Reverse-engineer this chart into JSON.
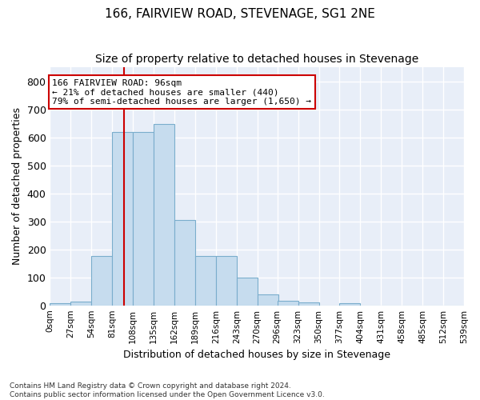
{
  "title": "166, FAIRVIEW ROAD, STEVENAGE, SG1 2NE",
  "subtitle": "Size of property relative to detached houses in Stevenage",
  "xlabel": "Distribution of detached houses by size in Stevenage",
  "ylabel": "Number of detached properties",
  "bar_color": "#c6dcee",
  "bar_edge_color": "#7aadcc",
  "background_color": "#e8eef8",
  "grid_color": "#ffffff",
  "bin_edges": [
    0,
    27,
    54,
    81,
    108,
    135,
    162,
    189,
    216,
    243,
    270,
    296,
    323,
    350,
    377,
    404,
    431,
    458,
    485,
    512,
    539
  ],
  "bar_heights": [
    8,
    13,
    175,
    620,
    620,
    648,
    305,
    175,
    175,
    98,
    40,
    15,
    10,
    0,
    8,
    0,
    0,
    0,
    0,
    0
  ],
  "property_size": 96,
  "vline_color": "#cc0000",
  "annotation_text": "166 FAIRVIEW ROAD: 96sqm\n← 21% of detached houses are smaller (440)\n79% of semi-detached houses are larger (1,650) →",
  "annotation_box_color": "#ffffff",
  "annotation_box_edge": "#cc0000",
  "ylim": [
    0,
    850
  ],
  "yticks": [
    0,
    100,
    200,
    300,
    400,
    500,
    600,
    700,
    800
  ],
  "footnote": "Contains HM Land Registry data © Crown copyright and database right 2024.\nContains public sector information licensed under the Open Government Licence v3.0.",
  "tick_labels": [
    "0sqm",
    "27sqm",
    "54sqm",
    "81sqm",
    "108sqm",
    "135sqm",
    "162sqm",
    "189sqm",
    "216sqm",
    "243sqm",
    "270sqm",
    "296sqm",
    "323sqm",
    "350sqm",
    "377sqm",
    "404sqm",
    "431sqm",
    "458sqm",
    "485sqm",
    "512sqm",
    "539sqm"
  ],
  "title_fontsize": 11,
  "subtitle_fontsize": 10,
  "xlabel_fontsize": 9,
  "ylabel_fontsize": 9
}
